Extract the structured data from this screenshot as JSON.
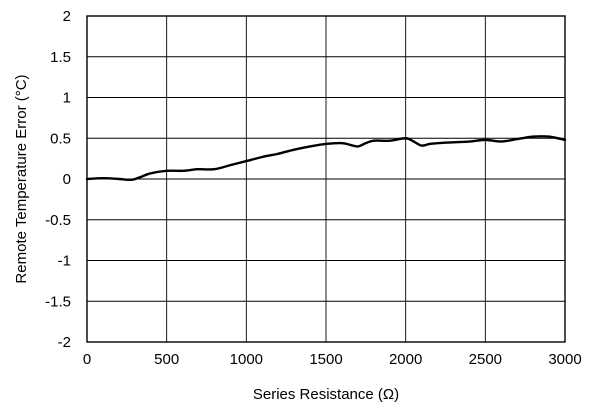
{
  "chart_data": {
    "type": "line",
    "title": "",
    "xlabel": "Series Resistance (Ω)",
    "ylabel": "Remote Temperature Error (°C)",
    "xlim": [
      0,
      3000
    ],
    "ylim": [
      -2,
      2
    ],
    "xticks": [
      0,
      500,
      1000,
      1500,
      2000,
      2500,
      3000
    ],
    "xtick_labels": [
      "0",
      "500",
      "1000",
      "1500",
      "2000",
      "2500",
      "3000"
    ],
    "yticks": [
      2,
      1.5,
      1,
      0.5,
      0,
      -0.5,
      -1,
      -1.5,
      -2
    ],
    "ytick_labels": [
      "2",
      "1.5",
      "1",
      "0.5",
      "0",
      "-0.5",
      "-1",
      "-1.5",
      "-2"
    ],
    "grid": true,
    "legend": "none",
    "series": [
      {
        "color": "#000000",
        "x": [
          0,
          100,
          200,
          280,
          330,
          400,
          500,
          600,
          650,
          700,
          800,
          900,
          1000,
          1100,
          1200,
          1300,
          1400,
          1500,
          1600,
          1650,
          1700,
          1750,
          1800,
          1900,
          2000,
          2050,
          2100,
          2150,
          2200,
          2300,
          2400,
          2500,
          2600,
          2700,
          2800,
          2900,
          3000
        ],
        "y": [
          0.0,
          0.01,
          0.0,
          -0.01,
          0.02,
          0.07,
          0.1,
          0.1,
          0.11,
          0.12,
          0.12,
          0.17,
          0.22,
          0.27,
          0.31,
          0.36,
          0.4,
          0.43,
          0.44,
          0.42,
          0.4,
          0.44,
          0.47,
          0.47,
          0.5,
          0.46,
          0.41,
          0.43,
          0.44,
          0.45,
          0.46,
          0.48,
          0.46,
          0.49,
          0.52,
          0.52,
          0.48
        ]
      }
    ]
  }
}
